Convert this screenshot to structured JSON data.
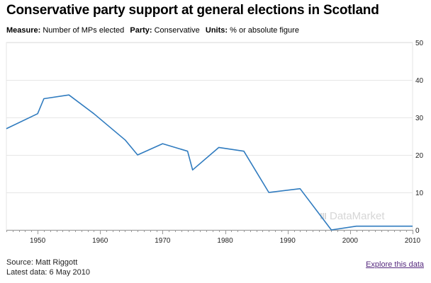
{
  "header": {
    "title": "Conservative party support at general elections in Scotland",
    "measure_key": "Measure:",
    "measure_val": "Number of MPs elected",
    "party_key": "Party:",
    "party_val": "Conservative",
    "units_key": "Units:",
    "units_val": "% or absolute figure"
  },
  "footer": {
    "source": "Source: Matt Riggott",
    "latest": "Latest data: 6 May 2010",
    "explore": "Explore this data"
  },
  "watermark": "DataMarket",
  "colors": {
    "line": "#2f7bbf",
    "grid": "#e6e6e6",
    "axis": "#999999",
    "link": "#55297e"
  },
  "chart_data": {
    "type": "line",
    "title": "Conservative party support at general elections in Scotland",
    "xlabel": "",
    "ylabel": "",
    "xlim": [
      1945,
      2010
    ],
    "ylim": [
      0,
      50
    ],
    "x_ticks": [
      1950,
      1960,
      1970,
      1980,
      1990,
      2000,
      2010
    ],
    "y_ticks": [
      0,
      10,
      20,
      30,
      40,
      50
    ],
    "y_axis_side": "right",
    "grid": true,
    "series": [
      {
        "x": [
          1945,
          1950,
          1951,
          1955,
          1959,
          1964,
          1966,
          1970,
          1974,
          1974.8,
          1979,
          1983,
          1987,
          1992,
          1997,
          2001,
          2005,
          2010
        ],
        "values": [
          27,
          31,
          35,
          36,
          31,
          24,
          20,
          23,
          21,
          16,
          22,
          21,
          10,
          11,
          0,
          1,
          1,
          1
        ]
      }
    ]
  }
}
